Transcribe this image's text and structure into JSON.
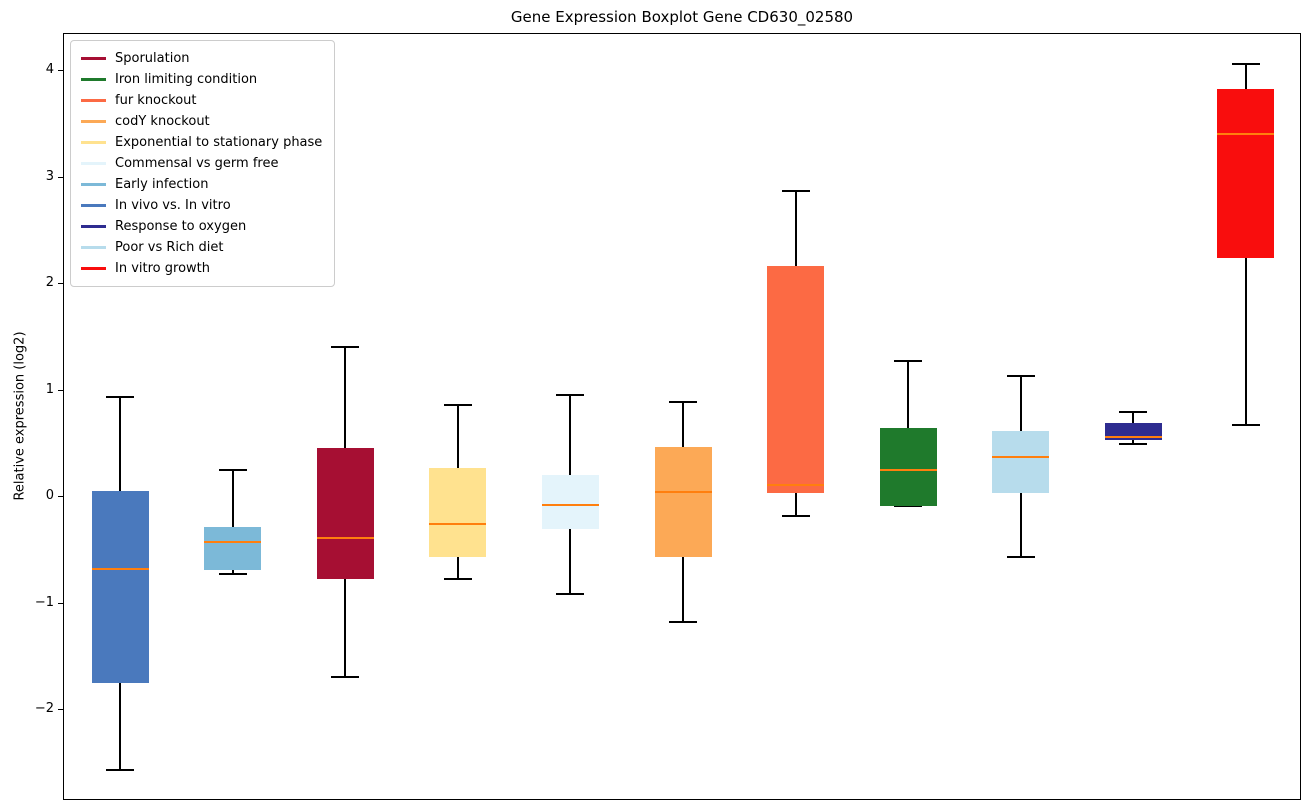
{
  "chart_data": {
    "type": "boxplot",
    "title": "Gene Expression Boxplot Gene CD630_02580",
    "ylabel": "Relative expression (log2)",
    "xlabel": "",
    "ylim": [
      -2.85,
      4.35
    ],
    "yticks": [
      -2,
      -1,
      0,
      1,
      2,
      3,
      4
    ],
    "grid": false,
    "legend_position": "upper-left",
    "median_color": "#FF7F0E",
    "whisker_color": "#000000",
    "legend": [
      {
        "label": "Sporulation",
        "color": "#A60F33"
      },
      {
        "label": "Iron limiting condition",
        "color": "#1F7A2C"
      },
      {
        "label": "fur knockout",
        "color": "#FC6A44"
      },
      {
        "label": "codY knockout",
        "color": "#FCA956"
      },
      {
        "label": "Exponential to stationary phase",
        "color": "#FFE28F"
      },
      {
        "label": "Commensal vs germ free",
        "color": "#E4F4FB"
      },
      {
        "label": "Early infection",
        "color": "#7CB9D8"
      },
      {
        "label": "In vivo vs. In vitro",
        "color": "#4A79BD"
      },
      {
        "label": "Response to oxygen",
        "color": "#2E2C90"
      },
      {
        "label": "Poor vs Rich diet",
        "color": "#B7DCEC"
      },
      {
        "label": "In vitro growth",
        "color": "#F90D0D"
      }
    ],
    "series": [
      {
        "label": "In vivo vs. In vitro",
        "color": "#4A79BD",
        "whisker_low": -2.56,
        "q1": -1.74,
        "median": -0.67,
        "q3": 0.06,
        "whisker_high": 0.94
      },
      {
        "label": "Early infection",
        "color": "#7CB9D8",
        "whisker_low": -0.72,
        "q1": -0.68,
        "median": -0.42,
        "q3": -0.28,
        "whisker_high": 0.26
      },
      {
        "label": "Sporulation",
        "color": "#A60F33",
        "whisker_low": -1.69,
        "q1": -0.77,
        "median": -0.38,
        "q3": 0.46,
        "whisker_high": 1.41
      },
      {
        "label": "Exponential to stationary phase",
        "color": "#FFE28F",
        "whisker_low": -0.77,
        "q1": -0.56,
        "median": -0.25,
        "q3": 0.28,
        "whisker_high": 0.87
      },
      {
        "label": "Commensal vs germ free",
        "color": "#E4F4FB",
        "whisker_low": -0.91,
        "q1": -0.3,
        "median": -0.07,
        "q3": 0.21,
        "whisker_high": 0.96
      },
      {
        "label": "codY knockout",
        "color": "#FCA956",
        "whisker_low": -1.17,
        "q1": -0.56,
        "median": 0.05,
        "q3": 0.47,
        "whisker_high": 0.9
      },
      {
        "label": "fur knockout",
        "color": "#FC6A44",
        "whisker_low": -0.17,
        "q1": 0.04,
        "median": 0.12,
        "q3": 2.17,
        "whisker_high": 2.88
      },
      {
        "label": "Iron limiting condition",
        "color": "#1F7A2C",
        "whisker_low": -0.08,
        "q1": -0.08,
        "median": 0.26,
        "q3": 0.65,
        "whisker_high": 1.28
      },
      {
        "label": "Poor vs Rich diet",
        "color": "#B7DCEC",
        "whisker_low": -0.56,
        "q1": 0.04,
        "median": 0.38,
        "q3": 0.62,
        "whisker_high": 1.14
      },
      {
        "label": "Response to oxygen",
        "color": "#2E2C90",
        "whisker_low": 0.5,
        "q1": 0.54,
        "median": 0.57,
        "q3": 0.7,
        "whisker_high": 0.8
      },
      {
        "label": "In vitro growth",
        "color": "#F90D0D",
        "whisker_low": 0.68,
        "q1": 2.25,
        "median": 3.41,
        "q3": 3.83,
        "whisker_high": 4.07
      }
    ]
  }
}
